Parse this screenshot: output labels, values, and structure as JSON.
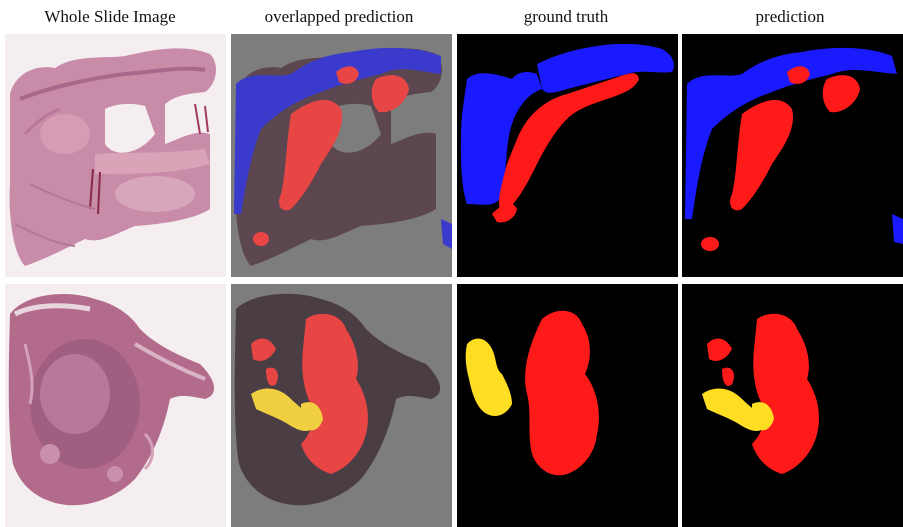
{
  "columns": [
    {
      "title": "Whole Slide Image"
    },
    {
      "title": "overlapped prediction"
    },
    {
      "title": "ground truth"
    },
    {
      "title": "prediction"
    }
  ],
  "colors": {
    "class_blue": "#1a1aff",
    "class_red": "#ff1a1a",
    "class_yellow": "#ffdd22",
    "background": "#000000",
    "overlay_gray": "#7d7d7d",
    "tissue_pink": "#c98ca8"
  },
  "rows": [
    {
      "panels": [
        "whole-slide-image",
        "overlapped-prediction",
        "ground-truth-mask",
        "prediction-mask"
      ]
    },
    {
      "panels": [
        "whole-slide-image",
        "overlapped-prediction",
        "ground-truth-mask",
        "prediction-mask"
      ]
    }
  ]
}
